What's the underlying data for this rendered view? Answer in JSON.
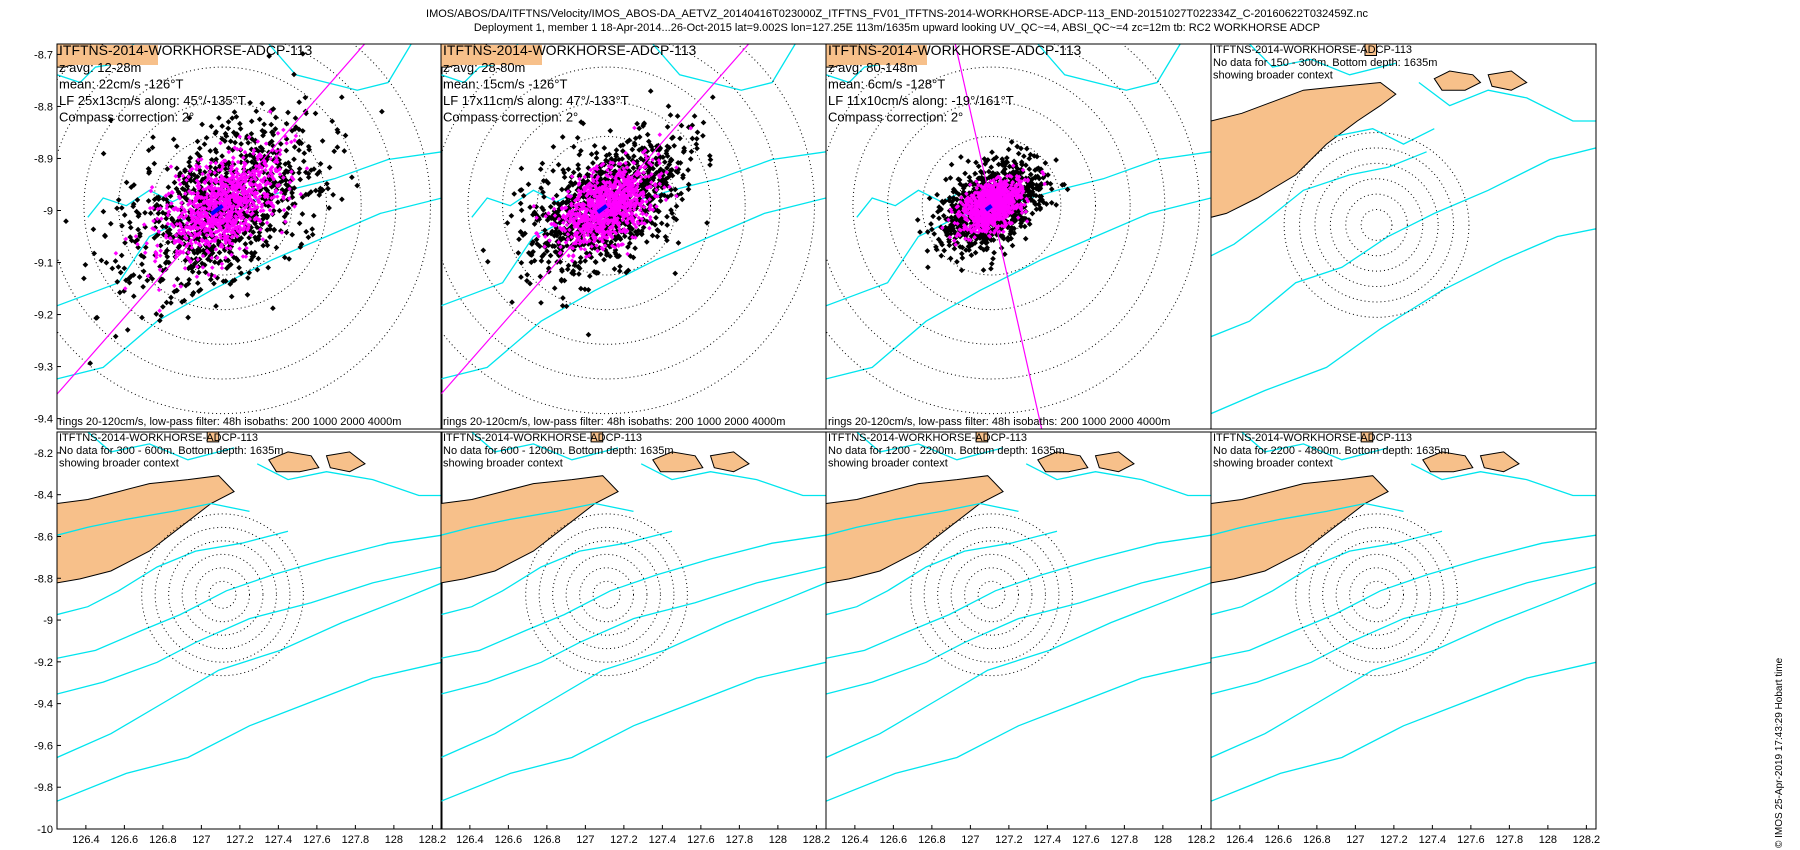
{
  "figure": {
    "title_line1": "IMOS/ABOS/DA/ITFTNS/Velocity/IMOS_ABOS-DA_AETVZ_20140416T023000Z_ITFTNS_FV01_ITFTNS-2014-WORKHORSE-ADCP-113_END-20151027T022334Z_C-20160622T032459Z.nc",
    "title_line2": "Deployment 1, member 1 18-Apr-2014...26-Oct-2015 lat=9.002S lon=127.25E 113m/1635m upward looking UV_QC~=4, ABSI_QC~=4 zc=12m tb: RC2 WORKHORSE ADCP",
    "side_note": "© IMOS 25-Apr-2019 17:43:29 Hobart time",
    "footer": "rings 20-120cm/s, low-pass filter: 48h isobaths: 200 1000 2000 4000m",
    "colors": {
      "isobath": "#00e5ee",
      "land": "#f7c08a",
      "lowpass": "#ff00ff",
      "raw": "#000000",
      "mean": "#0000ff"
    }
  },
  "chart_data": [
    {
      "type": "scatter",
      "panel": "top-1",
      "instrument": "ITFTNS-2014-WORKHORSE-ADCP-113",
      "lines": [
        "z avg: 12-28m",
        "mean: 22cm/s -126°T",
        "LF 25x13cm/s along: 45°/-135°T",
        "Compass correction: 2°"
      ],
      "footer": "rings 20-120cm/s, low-pass filter: 48h isobaths: 200 1000 2000 4000m",
      "yticks": [
        "-8.7",
        "-8.8",
        "-8.9",
        "-9",
        "-9.1",
        "-9.2",
        "-9.3",
        "-9.4"
      ],
      "ylim": [
        -9.42,
        -8.68
      ],
      "mean_speed_cms": 22,
      "mean_dir_degT": -126,
      "lf_major_cms": 25,
      "lf_minor_cms": 13,
      "along_deg": 45
    },
    {
      "type": "scatter",
      "panel": "top-2",
      "instrument": "ITFTNS-2014-WORKHORSE-ADCP-113",
      "lines": [
        "z avg: 28-80m",
        "mean: 15cm/s -126°T",
        "LF 17x11cm/s along: 47°/-133°T",
        "Compass correction: 2°"
      ],
      "footer": "rings 20-120cm/s, low-pass filter: 48h isobaths: 200 1000 2000 4000m",
      "mean_speed_cms": 15,
      "mean_dir_degT": -126,
      "lf_major_cms": 17,
      "lf_minor_cms": 11,
      "along_deg": 47
    },
    {
      "type": "scatter",
      "panel": "top-3",
      "instrument": "ITFTNS-2014-WORKHORSE-ADCP-113",
      "lines": [
        "z avg: 80-148m",
        "mean: 6cm/s -128°T",
        "LF 11x10cm/s along: -19°/161°T",
        "Compass correction: 2°"
      ],
      "footer": "rings 20-120cm/s, low-pass filter: 48h isobaths: 200 1000 2000 4000m",
      "mean_speed_cms": 6,
      "mean_dir_degT": -128,
      "lf_major_cms": 11,
      "lf_minor_cms": 10,
      "along_deg": -19
    },
    {
      "type": "scatter",
      "panel": "top-4",
      "instrument": "ITFTNS-2014-WORKHORSE-ADCP-113",
      "lines": [
        "No data for 150 - 300m. Bottom depth: 1635m",
        "showing broader context"
      ]
    },
    {
      "type": "scatter",
      "panel": "bottom-1",
      "instrument": "ITFTNS-2014-WORKHORSE-ADCP-113",
      "lines": [
        "No data for 300 - 600m. Bottom depth: 1635m",
        "showing broader context"
      ],
      "yticks": [
        "-8.2",
        "-8.4",
        "-8.6",
        "-8.8",
        "-9",
        "-9.2",
        "-9.4",
        "-9.6",
        "-9.8",
        "-10"
      ],
      "ylim": [
        -10,
        -8.1
      ],
      "xticks": [
        "126.4",
        "126.6",
        "126.8",
        "127",
        "127.2",
        "127.4",
        "127.6",
        "127.8",
        "128",
        "128.2"
      ],
      "xlim": [
        126.25,
        128.25
      ]
    },
    {
      "type": "scatter",
      "panel": "bottom-2",
      "instrument": "ITFTNS-2014-WORKHORSE-ADCP-113",
      "lines": [
        "No data for 600 - 1200m. Bottom depth: 1635m",
        "showing broader context"
      ],
      "xticks": [
        "126.4",
        "126.6",
        "126.8",
        "127",
        "127.2",
        "127.4",
        "127.6",
        "127.8",
        "128",
        "128.2"
      ]
    },
    {
      "type": "scatter",
      "panel": "bottom-3",
      "instrument": "ITFTNS-2014-WORKHORSE-ADCP-113",
      "lines": [
        "No data for 1200 - 2200m. Bottom depth: 1635m",
        "showing broader context"
      ],
      "xticks": [
        "126.4",
        "126.6",
        "126.8",
        "127",
        "127.2",
        "127.4",
        "127.6",
        "127.8",
        "128",
        "128.2"
      ]
    },
    {
      "type": "scatter",
      "panel": "bottom-4",
      "instrument": "ITFTNS-2014-WORKHORSE-ADCP-113",
      "lines": [
        "No data for 2200 - 4800m. Bottom depth: 1635m",
        "showing broader context"
      ],
      "xticks": [
        "126.4",
        "126.6",
        "126.8",
        "127",
        "127.2",
        "127.4",
        "127.6",
        "127.8",
        "128",
        "128.2"
      ]
    }
  ]
}
